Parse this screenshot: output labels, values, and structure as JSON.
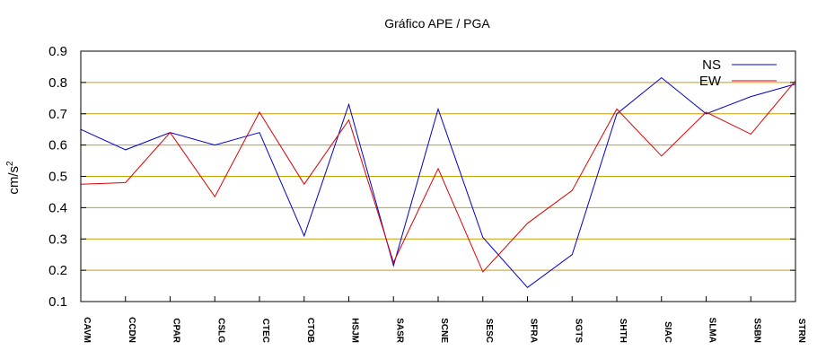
{
  "chart_data": {
    "type": "line",
    "title": "Gráfico  APE / PGA",
    "xlabel": "",
    "ylabel_base": "cm/s",
    "ylabel_sup": "2",
    "ylim": [
      0.1,
      0.9
    ],
    "yticks": [
      "0.1",
      "0.2",
      "0.3",
      "0.4",
      "0.5",
      "0.6",
      "0.7",
      "0.8",
      "0.9"
    ],
    "grid": true,
    "grid_color": "#c8a000",
    "legend_position": "top-right",
    "categories": [
      "CAVM",
      "CCDN",
      "CPAR",
      "CSLG",
      "CTEC",
      "CTOB",
      "HSJM",
      "SASR",
      "SCNE",
      "SESC",
      "SFRA",
      "SGTS",
      "SHTH",
      "SIAC",
      "SLMA",
      "SSBN",
      "STRN"
    ],
    "series": [
      {
        "name": "NS",
        "color": "#0000cc",
        "values": [
          0.65,
          0.585,
          0.64,
          0.6,
          0.64,
          0.31,
          0.73,
          0.215,
          0.715,
          0.305,
          0.145,
          0.25,
          0.7,
          0.815,
          0.7,
          0.755,
          0.795
        ]
      },
      {
        "name": "EW",
        "color": "#dd0000",
        "values": [
          0.475,
          0.48,
          0.64,
          0.435,
          0.705,
          0.475,
          0.68,
          0.225,
          0.525,
          0.195,
          0.35,
          0.455,
          0.715,
          0.565,
          0.705,
          0.635,
          0.805
        ]
      }
    ]
  }
}
